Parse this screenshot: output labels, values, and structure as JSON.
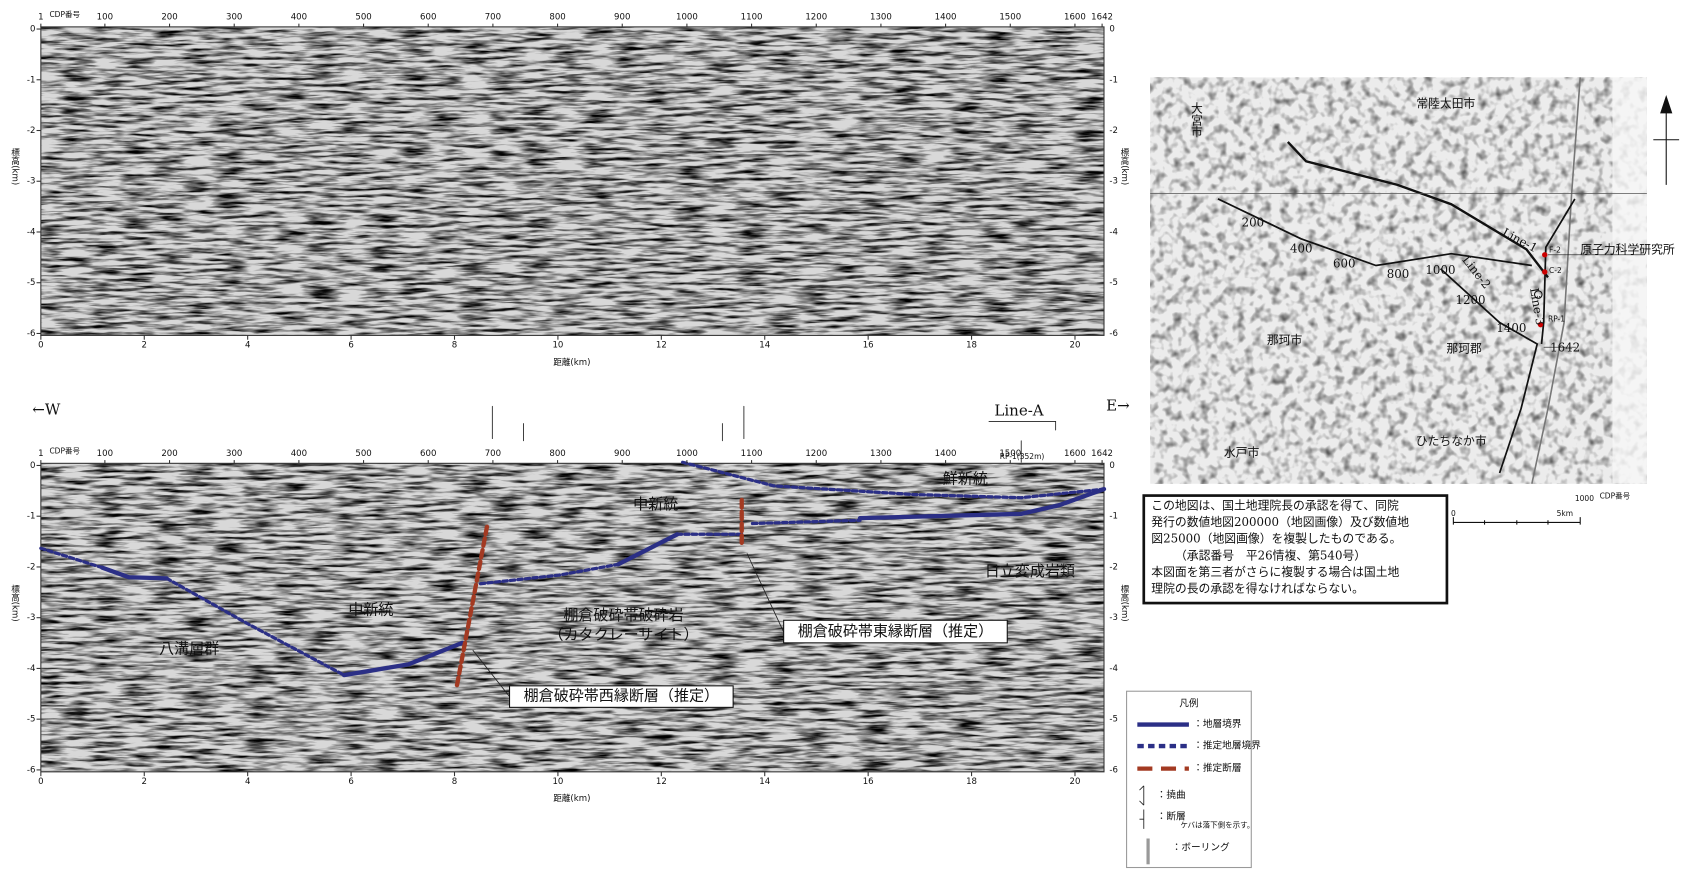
{
  "top_profile": {
    "cdp_title": "CDP番号",
    "cdp_ticks": [
      1,
      100,
      200,
      300,
      400,
      500,
      600,
      700,
      800,
      900,
      1000,
      1100,
      1200,
      1300,
      1400,
      1500,
      1600,
      1642
    ],
    "depth_title": "標高(km)",
    "depth_ticks": [
      0,
      -1,
      -2,
      -3,
      -4,
      -5,
      -6
    ],
    "distance_title": "距離(km)",
    "distance_ticks": [
      0,
      2,
      4,
      6,
      8,
      10,
      12,
      14,
      16,
      18,
      20
    ]
  },
  "bottom_profile": {
    "cdp_title": "CDP番号",
    "cdp_ticks": [
      1,
      100,
      200,
      300,
      400,
      500,
      600,
      700,
      800,
      900,
      1000,
      1100,
      1200,
      1300,
      1400,
      1500,
      1600,
      1642
    ],
    "depth_title": "標高(km)",
    "depth_ticks": [
      0,
      -1,
      -2,
      -3,
      -4,
      -5,
      -6
    ],
    "distance_title": "距離(km)",
    "distance_ticks": [
      0,
      2,
      4,
      6,
      8,
      10,
      12,
      14,
      16,
      18,
      20
    ],
    "west": "←W",
    "east": "E→",
    "line_name": "Line-A",
    "boring": "RP-1(352m)",
    "units": [
      "鮮新統",
      "中新統",
      "日立変成岩類",
      "中新統",
      "八溝層群",
      "棚倉破砕帯破砕岩",
      "（カタクレーサイト）"
    ],
    "faults": [
      "棚倉破砕帯東縁断層（推定）",
      "棚倉破砕帯西縁断層（推定）"
    ]
  },
  "map": {
    "places": [
      "常陸太田市",
      "那珂市",
      "那珂郡",
      "水戸市",
      "ひたちなか市",
      "大宮市"
    ],
    "facility": "原子力科学研究所",
    "lines": [
      "Line-1",
      "Line-2",
      "Line-3"
    ],
    "cdp_numbers": [
      200,
      400,
      600,
      800,
      1000,
      1200,
      1400,
      1642
    ],
    "sites": [
      "F-2",
      "C-2",
      "RP-1"
    ],
    "scale": [
      "0",
      "5km"
    ],
    "cdp_example": "1000",
    "cdp_title": "CDP番号"
  },
  "copyright": [
    "この地図は、国土地理院長の承認を得て、同院",
    "発行の数値地図200000（地図画像）及び数値地",
    "図25000（地図画像）を複製したものである。",
    "（承認番号　平26情複、第540号）",
    "本図面を第三者がさらに複製する場合は国土地",
    "理院の長の承認を得なければならない。"
  ],
  "legend": {
    "title": "凡例",
    "items": [
      "：地層境界",
      "：推定地層境界",
      "：推定断層",
      "：撓曲",
      "：断層",
      "：ボーリング"
    ],
    "note": "ケバは落下側を示す。"
  }
}
